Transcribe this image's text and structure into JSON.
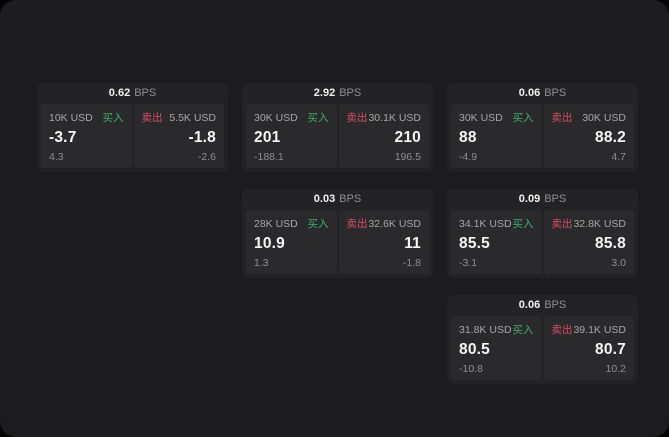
{
  "panel": {
    "unit": "BPS",
    "buy_label": "买入",
    "sell_label": "卖出"
  },
  "colors": {
    "surface": "#1c1c1e",
    "card": "#232325",
    "tile": "#2a2a2c",
    "buy_accent": "#3fae6e",
    "sell_accent": "#dc4a66"
  },
  "cards": [
    {
      "bps": "0.62",
      "buy": {
        "size": "10K USD",
        "price": "-3.7",
        "change": "4.3"
      },
      "sell": {
        "size": "5.5K USD",
        "price": "-1.8",
        "change": "-2.6"
      }
    },
    {
      "bps": "2.92",
      "buy": {
        "size": "30K USD",
        "price": "201",
        "change": "-188.1"
      },
      "sell": {
        "size": "30.1K USD",
        "price": "210",
        "change": "196.5"
      }
    },
    {
      "bps": "0.06",
      "buy": {
        "size": "30K USD",
        "price": "88",
        "change": "-4.9"
      },
      "sell": {
        "size": "30K USD",
        "price": "88.2",
        "change": "4.7"
      }
    },
    {
      "bps": "0.03",
      "buy": {
        "size": "28K USD",
        "price": "10.9",
        "change": "1.3"
      },
      "sell": {
        "size": "32.6K USD",
        "price": "11",
        "change": "-1.8"
      }
    },
    {
      "bps": "0.09",
      "buy": {
        "size": "34.1K USD",
        "price": "85.5",
        "change": "-3.1"
      },
      "sell": {
        "size": "32.8K USD",
        "price": "85.8",
        "change": "3.0"
      }
    },
    {
      "bps": "0.06",
      "buy": {
        "size": "31.8K USD",
        "price": "80.5",
        "change": "-10.8"
      },
      "sell": {
        "size": "39.1K USD",
        "price": "80.7",
        "change": "10.2"
      }
    }
  ]
}
